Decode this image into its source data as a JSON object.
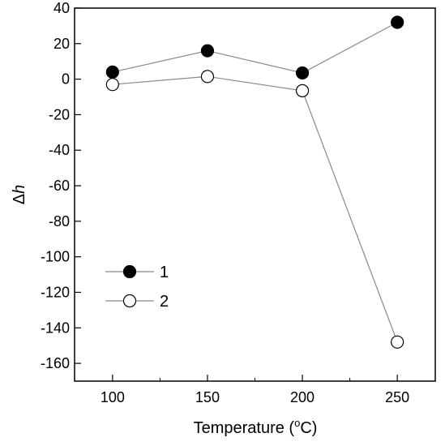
{
  "chart_data": {
    "type": "line",
    "x": [
      100,
      150,
      200,
      250
    ],
    "series": [
      {
        "name": "1",
        "values": [
          4,
          16,
          3.5,
          32
        ],
        "marker": "filled-circle",
        "color": "#000000"
      },
      {
        "name": "2",
        "values": [
          -3,
          1.5,
          -6.5,
          -148
        ],
        "marker": "open-circle",
        "color": "#000000"
      }
    ],
    "xlabel_text": "Temperature (",
    "xlabel_sup": "o",
    "xlabel_unit": "C)",
    "ylabel_prefix": "Δ",
    "ylabel_var": "h",
    "xlim": [
      80,
      270
    ],
    "ylim": [
      -170,
      40
    ],
    "xticks": [
      100,
      150,
      200,
      250
    ],
    "yticks": [
      40,
      20,
      0,
      -20,
      -40,
      -60,
      -80,
      -100,
      -120,
      -140,
      -160
    ],
    "legend_position": "lower-left",
    "grid": false,
    "line_color": "#888888"
  }
}
